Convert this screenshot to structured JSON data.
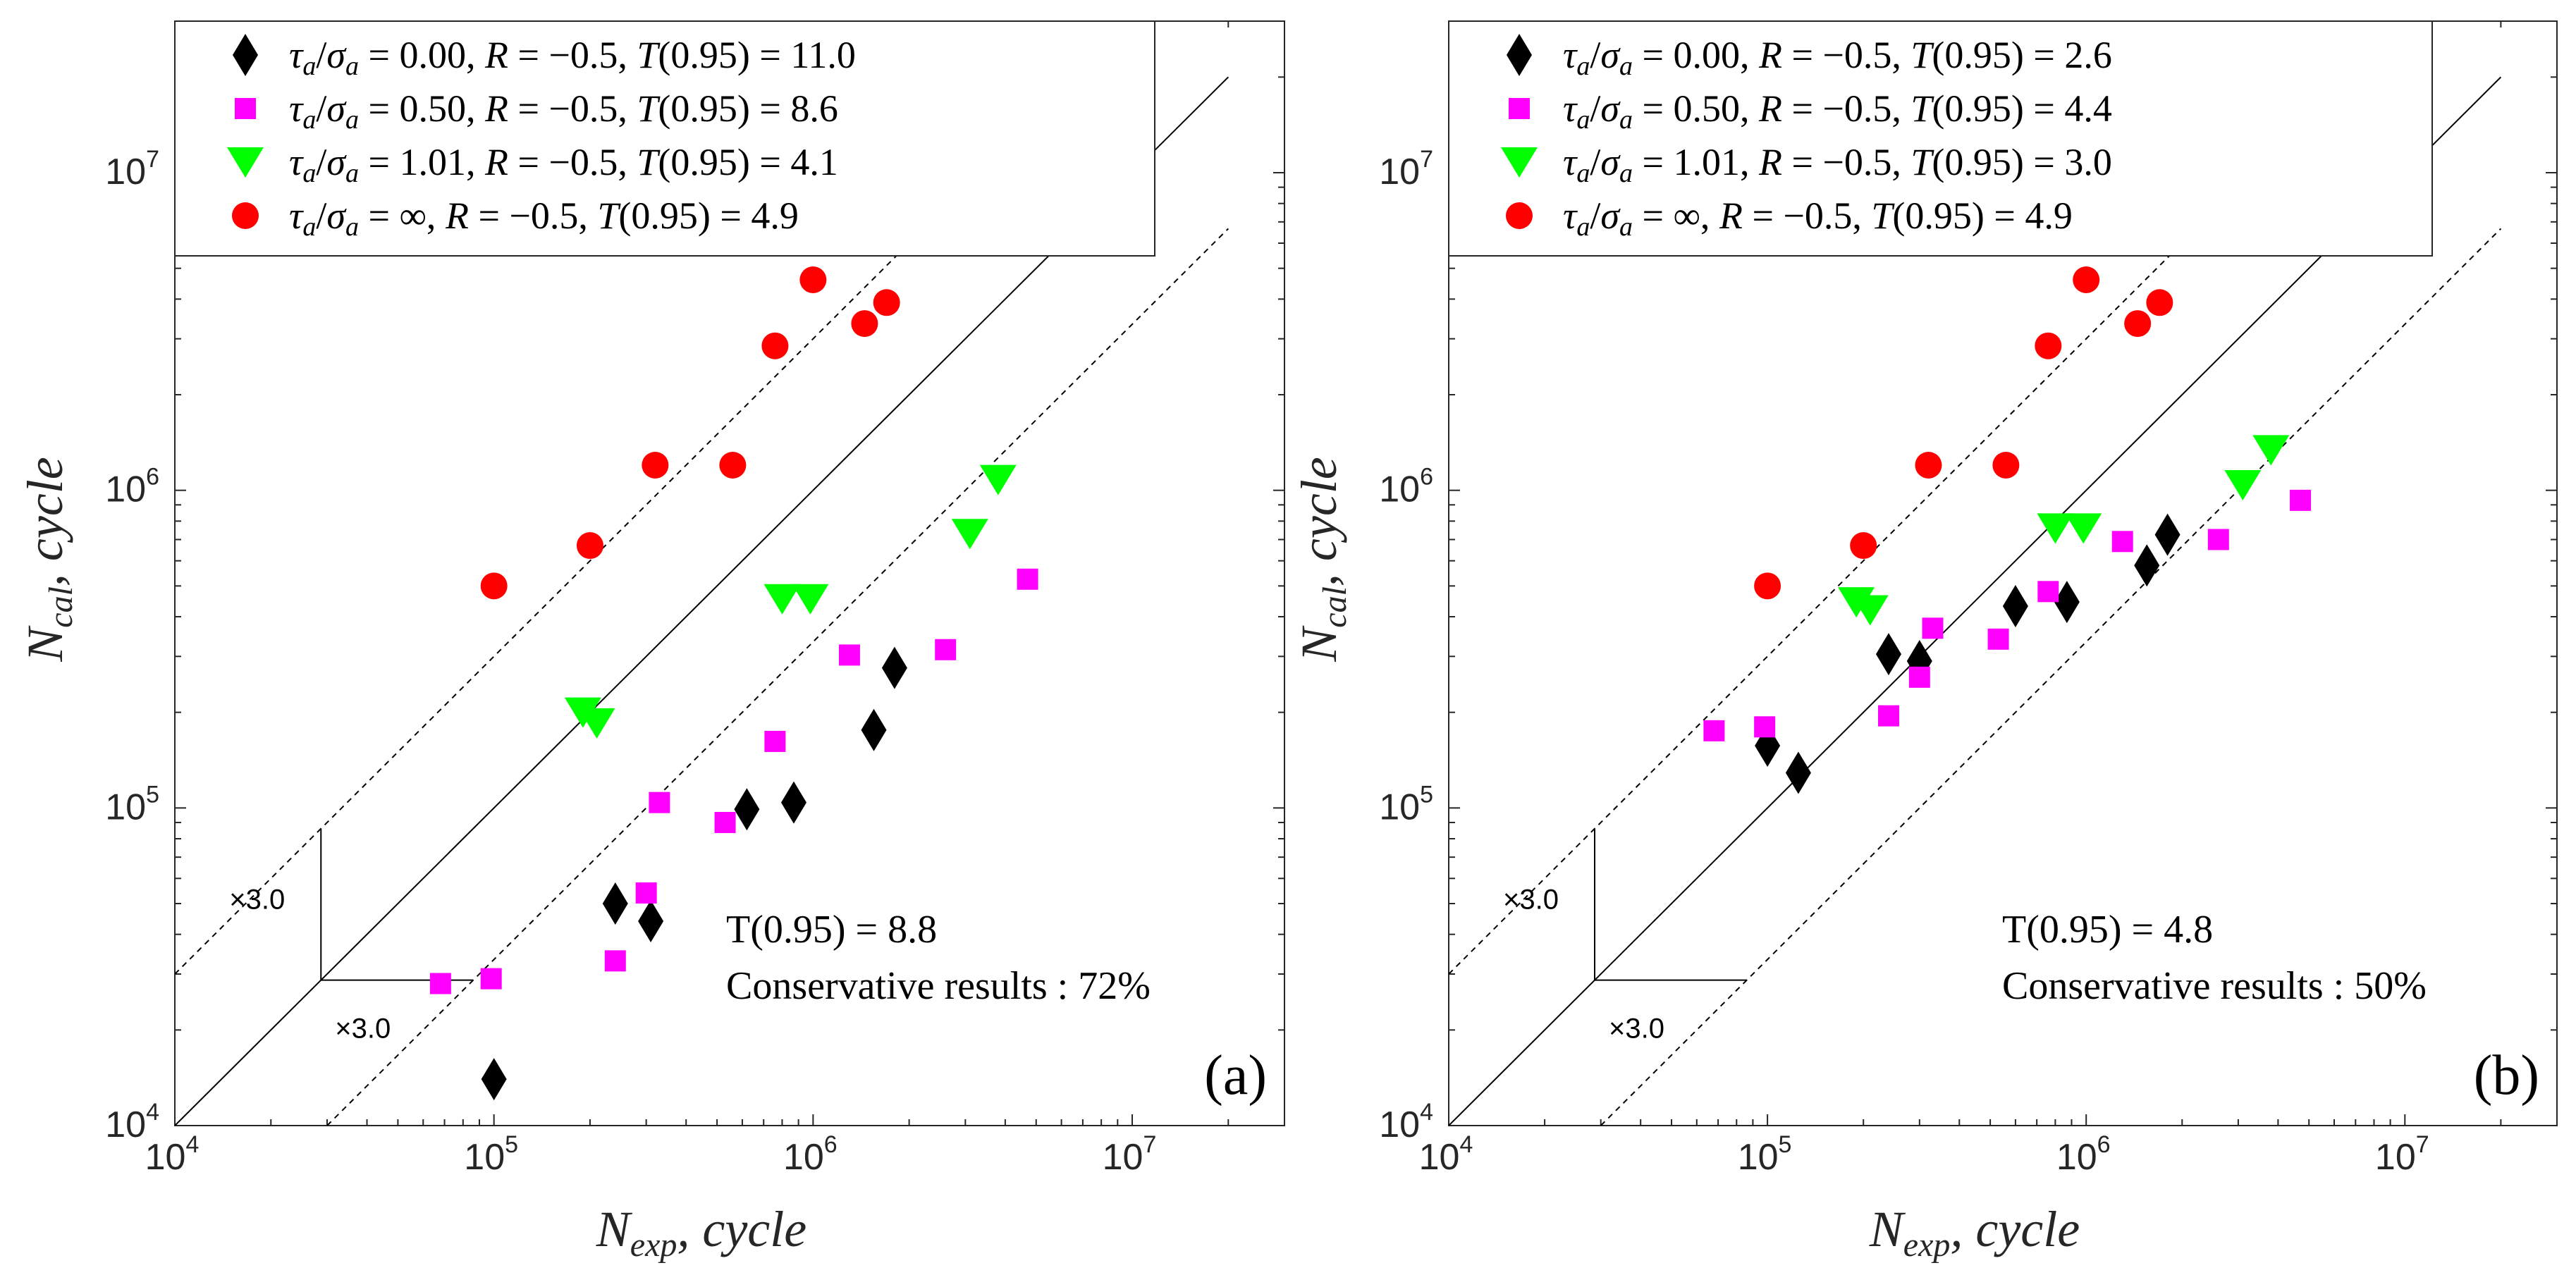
{
  "chart_data": [
    {
      "type": "scatter",
      "panel_label": "(a)",
      "x_scale": "log",
      "y_scale": "log",
      "xlim": [
        10000,
        30000000
      ],
      "ylim": [
        10000,
        30000000
      ],
      "xlabel": {
        "symbol": "N",
        "subscript": "exp",
        "suffix": ", cycle"
      },
      "ylabel": {
        "symbol": "N",
        "subscript": "cal",
        "suffix": ", cycle"
      },
      "x_ticks": [
        10000,
        100000,
        1000000,
        10000000
      ],
      "y_ticks": [
        10000,
        100000,
        1000000,
        10000000
      ],
      "tick_base": "10",
      "tick_exponents": [
        "4",
        "5",
        "6",
        "7"
      ],
      "scatter_band_factor": 3.0,
      "factor_label": "×3.0",
      "annotation": {
        "line1": "T(0.95) = 8.8",
        "line2": "Conservative results : 72%"
      },
      "series": [
        {
          "name": "τa/σa = 0.00, R = −0.5, T(0.95) = 11.0",
          "marker": "diamond",
          "color": "#000000",
          "x": [
            100000,
            240000,
            310000,
            620000,
            870000,
            1550000,
            1800000
          ],
          "y": [
            14000,
            50000,
            44000,
            99000,
            104000,
            176000,
            276000
          ]
        },
        {
          "name": "τa/σa = 0.50, R = −0.5, T(0.95) = 8.6",
          "marker": "square",
          "color": "#ff00ff",
          "x": [
            68000,
            98000,
            240000,
            300000,
            330000,
            530000,
            760000,
            1300000,
            2600000,
            4700000
          ],
          "y": [
            28000,
            29000,
            33000,
            54000,
            104000,
            90000,
            162000,
            303000,
            315000,
            525000
          ]
        },
        {
          "name": "τa/σa = 1.01, R = −0.5, T(0.95) = 4.1",
          "marker": "triangle-down",
          "color": "#00ff00",
          "x": [
            190000,
            210000,
            800000,
            980000,
            3100000,
            3800000
          ],
          "y": [
            200000,
            185000,
            455000,
            455000,
            730000,
            1080000
          ]
        },
        {
          "name": "τa/σa = ∞, R = −0.5, T(0.95) = 4.9",
          "marker": "circle",
          "color": "#ff0000",
          "x": [
            100000,
            200000,
            320000,
            560000,
            760000,
            1000000,
            1450000,
            1700000
          ],
          "y": [
            500000,
            670000,
            1200000,
            1200000,
            2850000,
            4600000,
            3350000,
            3900000
          ]
        }
      ]
    },
    {
      "type": "scatter",
      "panel_label": "(b)",
      "x_scale": "log",
      "y_scale": "log",
      "xlim": [
        10000,
        30000000
      ],
      "ylim": [
        10000,
        30000000
      ],
      "xlabel": {
        "symbol": "N",
        "subscript": "exp",
        "suffix": ", cycle"
      },
      "ylabel": {
        "symbol": "N",
        "subscript": "cal",
        "suffix": ", cycle"
      },
      "x_ticks": [
        10000,
        100000,
        1000000,
        10000000
      ],
      "y_ticks": [
        10000,
        100000,
        1000000,
        10000000
      ],
      "tick_base": "10",
      "tick_exponents": [
        "4",
        "5",
        "6",
        "7"
      ],
      "scatter_band_factor": 3.0,
      "factor_label": "×3.0",
      "annotation": {
        "line1": "T(0.95) = 4.8",
        "line2": "Conservative results : 50%"
      },
      "series": [
        {
          "name": "τa/σa = 0.00, R = −0.5, T(0.95) = 2.6",
          "marker": "diamond",
          "color": "#000000",
          "x": [
            100000,
            125000,
            240000,
            300000,
            600000,
            870000,
            1550000,
            1800000
          ],
          "y": [
            157000,
            129000,
            305000,
            290000,
            432000,
            445000,
            580000,
            725000
          ]
        },
        {
          "name": "τa/σa = 0.50, R = −0.5, T(0.95) = 4.4",
          "marker": "square",
          "color": "#ff00ff",
          "x": [
            68000,
            98000,
            240000,
            300000,
            330000,
            530000,
            760000,
            1300000,
            2600000,
            4700000
          ],
          "y": [
            175000,
            180000,
            195000,
            258000,
            368000,
            340000,
            480000,
            690000,
            700000,
            930000
          ]
        },
        {
          "name": "τa/σa = 1.01, R = −0.5, T(0.95) = 3.0",
          "marker": "triangle-down",
          "color": "#00ff00",
          "x": [
            190000,
            210000,
            800000,
            980000,
            3100000,
            3800000
          ],
          "y": [
            445000,
            420000,
            760000,
            760000,
            1040000,
            1340000
          ]
        },
        {
          "name": "τa/σa = ∞, R = −0.5, T(0.95) = 4.9",
          "marker": "circle",
          "color": "#ff0000",
          "x": [
            100000,
            200000,
            320000,
            560000,
            760000,
            1000000,
            1450000,
            1700000
          ],
          "y": [
            500000,
            670000,
            1200000,
            1200000,
            2850000,
            4600000,
            3350000,
            3900000
          ]
        }
      ]
    }
  ]
}
